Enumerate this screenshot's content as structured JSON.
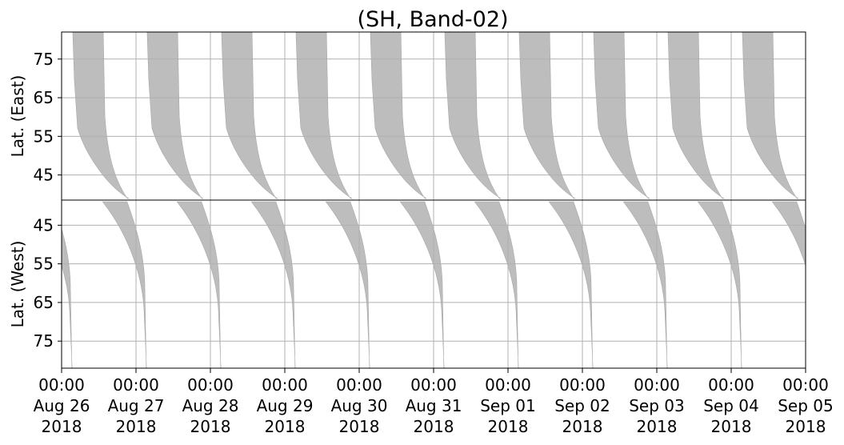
{
  "chart_data": {
    "type": "area",
    "title": "(SH, Band-02)",
    "xlabel": "",
    "x_range": [
      "2018-08-26T00:00",
      "2018-09-05T00:00"
    ],
    "x_ticks": [
      {
        "time": "00:00",
        "date": "Aug 26",
        "year": "2018"
      },
      {
        "time": "00:00",
        "date": "Aug 27",
        "year": "2018"
      },
      {
        "time": "00:00",
        "date": "Aug 28",
        "year": "2018"
      },
      {
        "time": "00:00",
        "date": "Aug 29",
        "year": "2018"
      },
      {
        "time": "00:00",
        "date": "Aug 30",
        "year": "2018"
      },
      {
        "time": "00:00",
        "date": "Aug 31",
        "year": "2018"
      },
      {
        "time": "00:00",
        "date": "Sep 01",
        "year": "2018"
      },
      {
        "time": "00:00",
        "date": "Sep 02",
        "year": "2018"
      },
      {
        "time": "00:00",
        "date": "Sep 03",
        "year": "2018"
      },
      {
        "time": "00:00",
        "date": "Sep 04",
        "year": "2018"
      },
      {
        "time": "00:00",
        "date": "Sep 05",
        "year": "2018"
      }
    ],
    "grid": true,
    "fill_color": "#bdbdbd",
    "panels": [
      {
        "name": "east",
        "ylabel": "Lat. (East)",
        "ylim": [
          38.5,
          82
        ],
        "y_inverted": false,
        "y_ticks": [
          "45",
          "55",
          "65",
          "75"
        ],
        "y_tick_values": [
          45,
          55,
          65,
          75
        ]
      },
      {
        "name": "west",
        "ylabel": "Lat. (West)",
        "ylim": [
          82,
          38.5
        ],
        "y_inverted": true,
        "y_ticks": [
          "75",
          "65",
          "55",
          "45"
        ],
        "y_tick_values": [
          75,
          65,
          55,
          45
        ]
      }
    ],
    "coverage_period_days": 1.0,
    "east_bands_day_offset": 0.15,
    "west_bands_day_offset": 0.6
  }
}
